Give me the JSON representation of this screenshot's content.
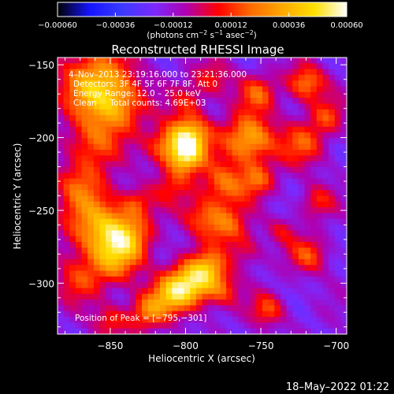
{
  "chart_data": {
    "type": "heatmap",
    "title": "Reconstructed RHESSI Image",
    "xlabel": "Heliocentric X (arcsec)",
    "ylabel": "Heliocentric Y (arcsec)",
    "xlim": [
      -885,
      -693
    ],
    "ylim": [
      -335,
      -145
    ],
    "x_ticks": [
      -850,
      -800,
      -750,
      -700
    ],
    "x_tick_labels": [
      "−850",
      "−800",
      "−750",
      "−700"
    ],
    "y_ticks": [
      -150,
      -200,
      -250,
      -300
    ],
    "y_tick_labels": [
      "−150",
      "−200",
      "−250",
      "−300"
    ],
    "colorbar": {
      "min": -0.0006,
      "max": 0.0006,
      "ticks": [
        -0.0006,
        -0.00036,
        -0.00012,
        0.00012,
        0.00036,
        0.0006
      ],
      "tick_labels": [
        "−0.00060",
        "−0.00036",
        "−0.00012",
        "0.00012",
        "0.00036",
        "0.00060"
      ],
      "unit_parts": [
        "(photons cm",
        "−2",
        " s",
        "−1",
        " asec",
        "−2",
        ")"
      ],
      "stops": [
        "#000000",
        "#1414ff",
        "#3a3aff",
        "#7a2aff",
        "#b000b0",
        "#ff0000",
        "#ff6a00",
        "#ffa800",
        "#ffe000",
        "#ffffff"
      ]
    },
    "annotations": [
      "4–Nov–2013 23:19:16.000 to 23:21:36.000",
      "Detectors: 3F 4F 5F 6F 7F 8F, Att 0",
      "Energy Range: 12.0 – 25.0 keV",
      "Clean     Total counts: 4.69E+03"
    ],
    "peak_label": "Position of Peak = [−795,−301]",
    "peak": [
      -795,
      -301
    ],
    "blobs": [
      [
        -860,
        -163,
        17,
        0.0005
      ],
      [
        -845,
        -180,
        13,
        0.00034
      ],
      [
        -862,
        -205,
        12,
        0.0003
      ],
      [
        -870,
        -232,
        12,
        0.00026
      ],
      [
        -858,
        -262,
        16,
        0.00046
      ],
      [
        -838,
        -270,
        12,
        0.00036
      ],
      [
        -848,
        -287,
        12,
        0.0003
      ],
      [
        -872,
        -300,
        11,
        0.00024
      ],
      [
        -815,
        -207,
        9,
        0.0003
      ],
      [
        -798,
        -200,
        10,
        0.00062
      ],
      [
        -800,
        -215,
        8,
        0.00046
      ],
      [
        -808,
        -234,
        9,
        0.00022
      ],
      [
        -790,
        -255,
        9,
        0.00028
      ],
      [
        -775,
        -233,
        11,
        0.00036
      ],
      [
        -773,
        -262,
        10,
        0.00034
      ],
      [
        -760,
        -280,
        8,
        0.0002
      ],
      [
        -758,
        -202,
        12,
        0.00052
      ],
      [
        -752,
        -170,
        9,
        0.0003
      ],
      [
        -752,
        -230,
        8,
        0.0003
      ],
      [
        -720,
        -163,
        9,
        0.0004
      ],
      [
        -722,
        -205,
        11,
        0.0003
      ],
      [
        -706,
        -186,
        8,
        0.00026
      ],
      [
        -713,
        -245,
        8,
        0.00024
      ],
      [
        -718,
        -282,
        9,
        0.0003
      ],
      [
        -783,
        -290,
        8,
        0.0003
      ],
      [
        -795,
        -301,
        11,
        0.0006
      ],
      [
        -810,
        -310,
        10,
        0.0004
      ],
      [
        -775,
        -307,
        8,
        0.00024
      ],
      [
        -826,
        -322,
        9,
        0.00034
      ],
      [
        -850,
        -328,
        8,
        0.00026
      ],
      [
        -745,
        -320,
        8,
        0.0003
      ],
      [
        -798,
        -175,
        8,
        0.0002
      ],
      [
        -782,
        -160,
        9,
        0.00024
      ],
      [
        -736,
        -265,
        7,
        0.00018
      ],
      [
        -832,
        -245,
        7,
        0.00022
      ]
    ]
  },
  "footer": {
    "timestamp": "18–May–2022 01:22"
  }
}
